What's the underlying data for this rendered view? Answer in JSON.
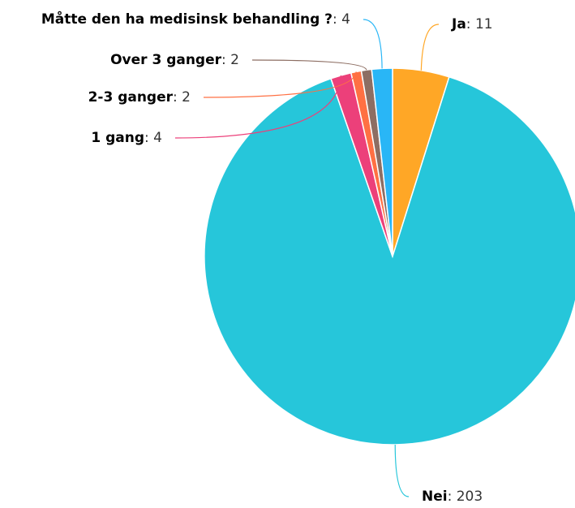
{
  "chart_data": {
    "type": "pie",
    "categories": [
      "Ja",
      "Nei",
      "1 gang",
      "2-3 ganger",
      "Over 3 ganger",
      "Måtte den ha medisinsk behandling ?"
    ],
    "values": [
      11,
      203,
      4,
      2,
      2,
      4
    ],
    "colors": [
      "#ffa726",
      "#26c6da",
      "#ec407a",
      "#ff7043",
      "#8d6e63",
      "#29b6f6"
    ]
  }
}
